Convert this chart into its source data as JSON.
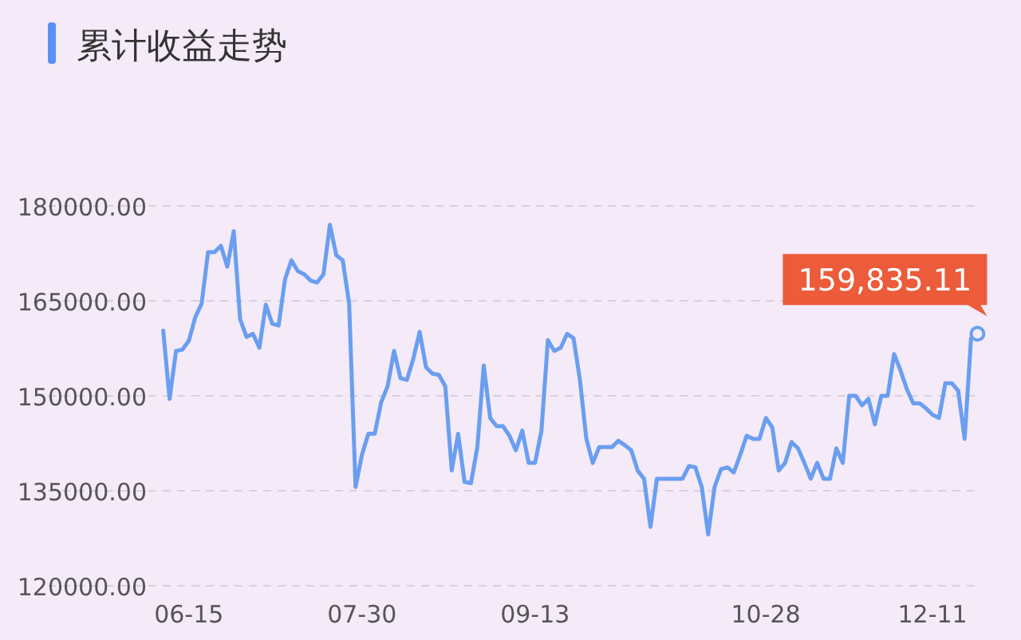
{
  "chart_data": {
    "type": "line",
    "title": "累计收益走势",
    "categories": [
      null,
      null,
      null,
      null,
      "06-15",
      null,
      null,
      null,
      null,
      null,
      null,
      null,
      null,
      null,
      null,
      null,
      null,
      null,
      null,
      null,
      null,
      null,
      null,
      null,
      null,
      null,
      null,
      null,
      null,
      null,
      null,
      "07-30",
      null,
      null,
      null,
      null,
      null,
      null,
      null,
      null,
      null,
      null,
      null,
      null,
      null,
      null,
      null,
      null,
      null,
      null,
      null,
      null,
      null,
      null,
      null,
      null,
      null,
      null,
      "09-13",
      null,
      null,
      null,
      null,
      null,
      null,
      null,
      null,
      null,
      null,
      null,
      null,
      null,
      null,
      null,
      null,
      null,
      null,
      null,
      null,
      null,
      null,
      null,
      null,
      null,
      null,
      null,
      null,
      null,
      null,
      null,
      null,
      null,
      null,
      null,
      "10-28",
      null,
      null,
      null,
      null,
      null,
      null,
      null,
      null,
      null,
      null,
      null,
      null,
      null,
      null,
      null,
      null,
      null,
      null,
      null,
      null,
      null,
      null,
      null,
      null,
      null,
      "12-11",
      null,
      null,
      null,
      null,
      null,
      null,
      null
    ],
    "series": [
      {
        "color": "#6a9ef0",
        "values": [
          160300,
          149500,
          157100,
          157300,
          158700,
          162400,
          164600,
          172700,
          172700,
          173700,
          170400,
          176000,
          162100,
          159300,
          159800,
          157600,
          164400,
          161400,
          161100,
          168400,
          171400,
          169700,
          169200,
          168200,
          167900,
          169200,
          177000,
          172200,
          171400,
          164600,
          135600,
          140700,
          144000,
          144000,
          149000,
          151500,
          157100,
          152800,
          152500,
          155800,
          160100,
          154500,
          153500,
          153300,
          151500,
          138200,
          144000,
          136400,
          136200,
          141900,
          154800,
          146500,
          145200,
          145200,
          143700,
          141400,
          144500,
          139400,
          139400,
          144500,
          158800,
          157100,
          157600,
          159800,
          159100,
          152500,
          143200,
          139400,
          141900,
          141900,
          141900,
          142900,
          142200,
          141400,
          138200,
          136900,
          129300,
          136900,
          136900,
          136900,
          136900,
          136900,
          138900,
          138700,
          135600,
          128100,
          135600,
          138400,
          138700,
          137900,
          140700,
          143700,
          143200,
          143200,
          146500,
          145000,
          138200,
          139400,
          142700,
          141700,
          139400,
          136900,
          139400,
          136900,
          136900,
          141700,
          139400,
          150000,
          150000,
          148500,
          149500,
          145500,
          150000,
          150000,
          156600,
          154000,
          151000,
          148800,
          148800,
          148000,
          147000,
          146500,
          152000,
          152000,
          150800,
          143200,
          159100,
          159800
        ]
      }
    ],
    "ylim": [
      120000,
      180000
    ],
    "yticks": [
      {
        "value": 120000,
        "label": "120000.00"
      },
      {
        "value": 135000,
        "label": "135000.00"
      },
      {
        "value": 150000,
        "label": "150000.00"
      },
      {
        "value": 165000,
        "label": "165000.00"
      },
      {
        "value": 180000,
        "label": "180000.00"
      }
    ],
    "grid": "y",
    "line_style": "solid",
    "annotations": [
      "159,835.11"
    ]
  }
}
